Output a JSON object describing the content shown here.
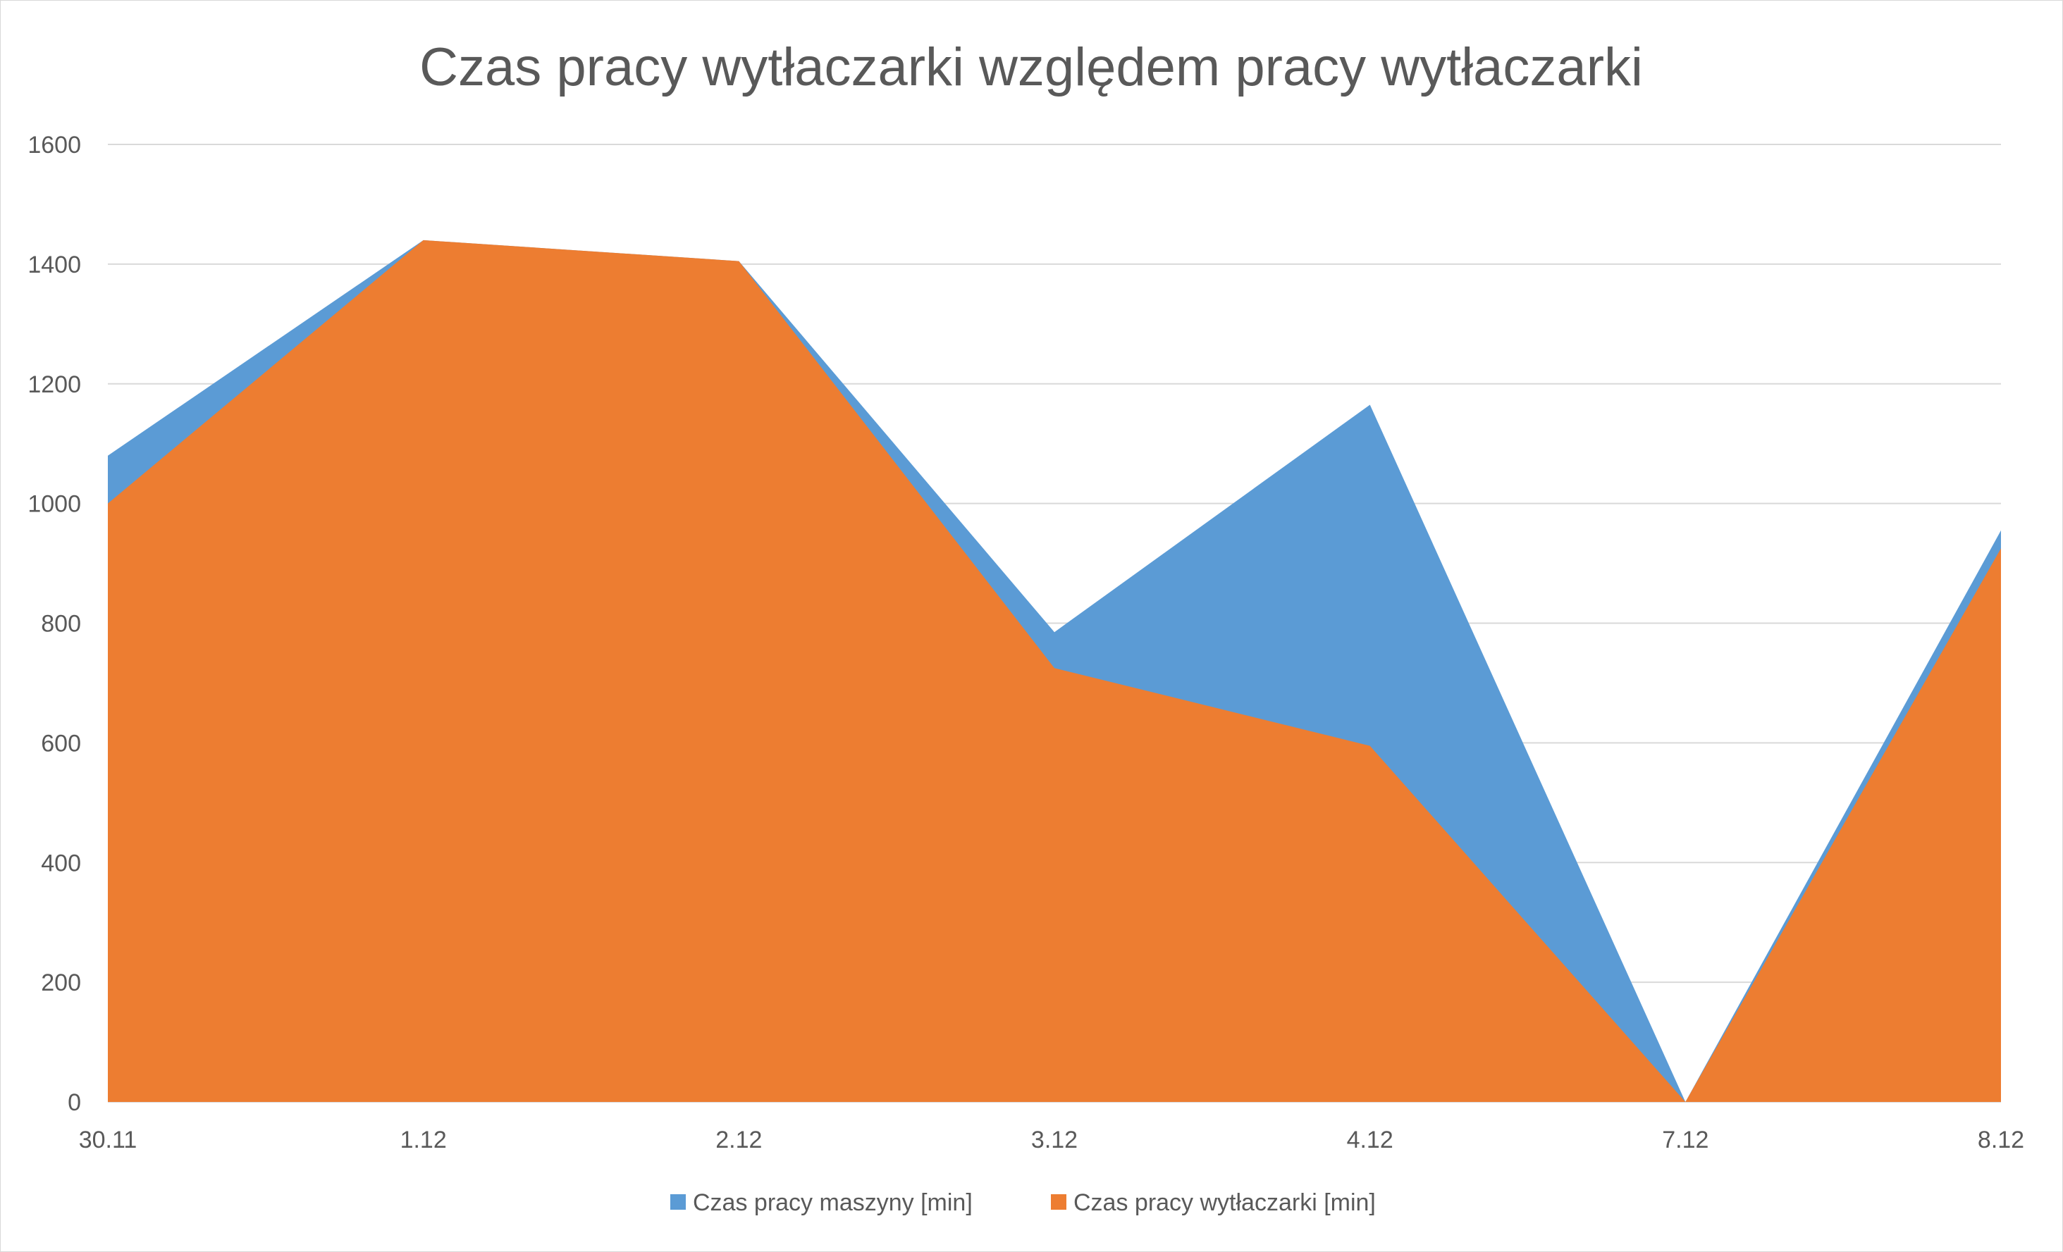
{
  "chart_data": {
    "type": "area",
    "title": "Czas pracy wytłaczarki względem pracy wytłaczarki",
    "xlabel": "",
    "ylabel": "",
    "categories": [
      "30.11",
      "1.12",
      "2.12",
      "3.12",
      "4.12",
      "7.12",
      "8.12"
    ],
    "series": [
      {
        "name": "Czas pracy maszyny [min]",
        "color": "#5B9BD5",
        "values": [
          1080,
          1440,
          1405,
          785,
          1165,
          0,
          955
        ]
      },
      {
        "name": "Czas pracy wytłaczarki [min]",
        "color": "#ED7D31",
        "values": [
          1000,
          1440,
          1405,
          725,
          595,
          0,
          925
        ]
      }
    ],
    "ylim": [
      0,
      1600
    ],
    "yticks": [
      0,
      200,
      400,
      600,
      800,
      1000,
      1200,
      1400,
      1600
    ],
    "grid": true,
    "legend_position": "bottom"
  }
}
